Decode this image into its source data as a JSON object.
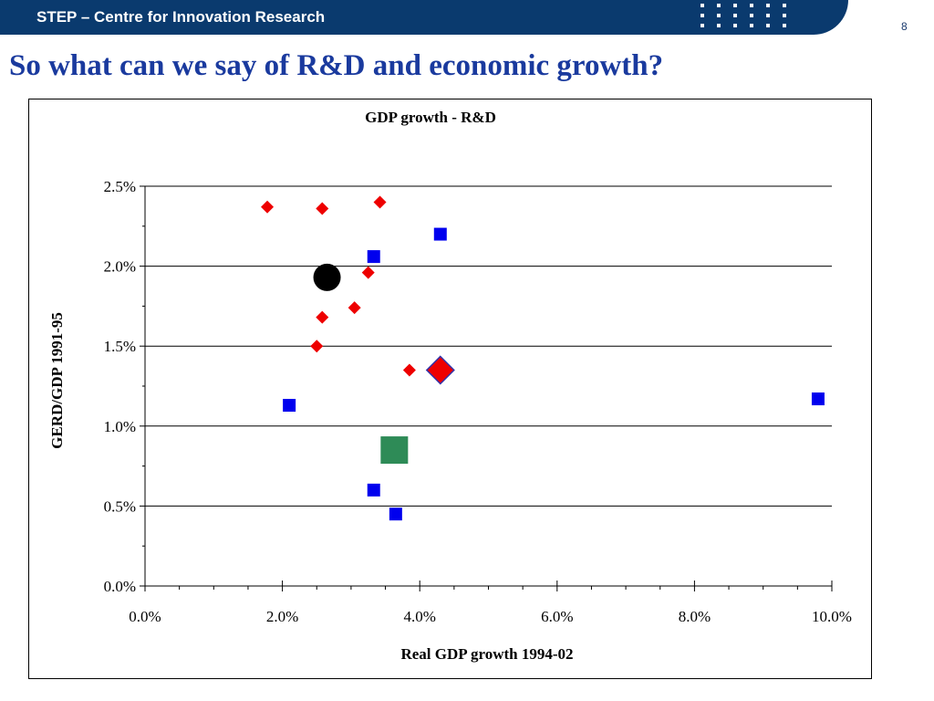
{
  "header": {
    "org_name": "STEP – Centre for Innovation Research",
    "page_number": "8"
  },
  "slide": {
    "title": "So what can we say of R&D and economic growth?"
  },
  "chart_data": {
    "type": "scatter",
    "title": "GDP growth - R&D",
    "xlabel": "Real GDP growth 1994-02",
    "ylabel": "GERD/GDP 1991-95",
    "xlim": [
      0,
      0.1
    ],
    "ylim": [
      0,
      0.025
    ],
    "xticks": [
      "0.0%",
      "2.0%",
      "4.0%",
      "6.0%",
      "8.0%",
      "10.0%"
    ],
    "yticks": [
      "0.0%",
      "0.5%",
      "1.0%",
      "1.5%",
      "2.0%",
      "2.5%"
    ],
    "grid": "horizontal",
    "colors": {
      "red": "#ee0000",
      "blue": "#0000ee",
      "black": "#000000",
      "green": "#2e8b57",
      "outline": "#3333aa"
    },
    "series": [
      {
        "marker": "diamond",
        "color": "#ee0000",
        "points": [
          [
            0.0178,
            0.0237
          ],
          [
            0.0258,
            0.0236
          ],
          [
            0.0342,
            0.024
          ],
          [
            0.0325,
            0.0196
          ],
          [
            0.0305,
            0.0174
          ],
          [
            0.0258,
            0.0168
          ],
          [
            0.025,
            0.015
          ],
          [
            0.0385,
            0.0135
          ]
        ]
      },
      {
        "marker": "square",
        "color": "#0000ee",
        "points": [
          [
            0.043,
            0.022
          ],
          [
            0.0333,
            0.0206
          ],
          [
            0.021,
            0.0113
          ],
          [
            0.0333,
            0.006
          ],
          [
            0.0365,
            0.0045
          ],
          [
            0.098,
            0.0117
          ]
        ]
      },
      {
        "marker": "big-circle",
        "color": "#000000",
        "points": [
          [
            0.0265,
            0.0193
          ]
        ]
      },
      {
        "marker": "big-diamond",
        "color": "#ee0000",
        "points": [
          [
            0.043,
            0.0135
          ]
        ]
      },
      {
        "marker": "big-square",
        "color": "#2e8b57",
        "points": [
          [
            0.0363,
            0.0085
          ]
        ]
      }
    ]
  }
}
